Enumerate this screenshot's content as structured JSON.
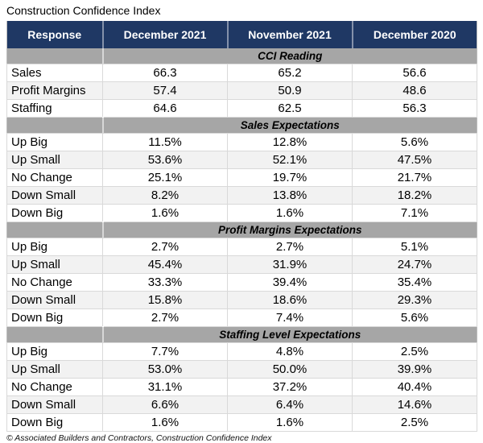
{
  "title": "Construction Confidence Index",
  "footer": "© Associated Builders and Contractors, Construction Confidence Index",
  "colors": {
    "header_bg": "#1F3864",
    "header_text": "#FFFFFF",
    "section_bg": "#A6A6A6",
    "stripe_bg": "#F2F2F2",
    "row_border": "#D9D9D9",
    "outer_border": "#BFBFBF"
  },
  "chart_data": {
    "type": "table",
    "title": "Construction Confidence Index",
    "columns": [
      "Response",
      "December 2021",
      "November 2021",
      "December 2020"
    ],
    "sections": [
      {
        "label": "CCI Reading",
        "rows": [
          {
            "response": "Sales",
            "values": [
              "66.3",
              "65.2",
              "56.6"
            ]
          },
          {
            "response": "Profit Margins",
            "values": [
              "57.4",
              "50.9",
              "48.6"
            ]
          },
          {
            "response": "Staffing",
            "values": [
              "64.6",
              "62.5",
              "56.3"
            ]
          }
        ]
      },
      {
        "label": "Sales Expectations",
        "rows": [
          {
            "response": "Up Big",
            "values": [
              "11.5%",
              "12.8%",
              "5.6%"
            ]
          },
          {
            "response": "Up Small",
            "values": [
              "53.6%",
              "52.1%",
              "47.5%"
            ]
          },
          {
            "response": "No Change",
            "values": [
              "25.1%",
              "19.7%",
              "21.7%"
            ]
          },
          {
            "response": "Down Small",
            "values": [
              "8.2%",
              "13.8%",
              "18.2%"
            ]
          },
          {
            "response": "Down Big",
            "values": [
              "1.6%",
              "1.6%",
              "7.1%"
            ]
          }
        ]
      },
      {
        "label": "Profit Margins Expectations",
        "rows": [
          {
            "response": "Up Big",
            "values": [
              "2.7%",
              "2.7%",
              "5.1%"
            ]
          },
          {
            "response": "Up Small",
            "values": [
              "45.4%",
              "31.9%",
              "24.7%"
            ]
          },
          {
            "response": "No Change",
            "values": [
              "33.3%",
              "39.4%",
              "35.4%"
            ]
          },
          {
            "response": "Down Small",
            "values": [
              "15.8%",
              "18.6%",
              "29.3%"
            ]
          },
          {
            "response": "Down Big",
            "values": [
              "2.7%",
              "7.4%",
              "5.6%"
            ]
          }
        ]
      },
      {
        "label": "Staffing Level Expectations",
        "rows": [
          {
            "response": "Up Big",
            "values": [
              "7.7%",
              "4.8%",
              "2.5%"
            ]
          },
          {
            "response": "Up Small",
            "values": [
              "53.0%",
              "50.0%",
              "39.9%"
            ]
          },
          {
            "response": "No Change",
            "values": [
              "31.1%",
              "37.2%",
              "40.4%"
            ]
          },
          {
            "response": "Down Small",
            "values": [
              "6.6%",
              "6.4%",
              "14.6%"
            ]
          },
          {
            "response": "Down Big",
            "values": [
              "1.6%",
              "1.6%",
              "2.5%"
            ]
          }
        ]
      }
    ]
  }
}
